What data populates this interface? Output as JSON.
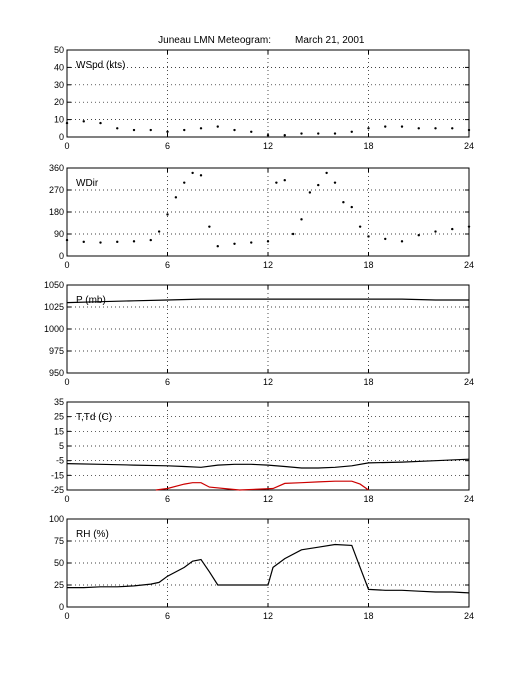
{
  "figure": {
    "title_station": "Juneau LMN Meteogram:",
    "title_date": "March 21, 2001"
  },
  "chart_data": [
    {
      "type": "scatter",
      "label": "WSpd (kts)",
      "xlim": [
        0,
        24
      ],
      "ylim": [
        0,
        50
      ],
      "xticks": [
        0,
        6,
        12,
        18,
        24
      ],
      "yticks": [
        0,
        10,
        20,
        30,
        40,
        50
      ],
      "grid": true,
      "series": [
        {
          "color": "#000000",
          "x": [
            0,
            1,
            2,
            3,
            4,
            5,
            6,
            7,
            8,
            9,
            10,
            11,
            12,
            13,
            14,
            15,
            16,
            17,
            18,
            19,
            20,
            21,
            22,
            23,
            24
          ],
          "values": [
            8,
            9,
            8,
            5,
            4,
            4,
            3,
            4,
            5,
            6,
            4,
            3,
            1,
            1,
            2,
            2,
            2,
            3,
            5,
            6,
            6,
            5,
            5,
            5,
            4
          ]
        }
      ]
    },
    {
      "type": "scatter",
      "label": "WDir",
      "xlim": [
        0,
        24
      ],
      "ylim": [
        0,
        360
      ],
      "xticks": [
        0,
        6,
        12,
        18,
        24
      ],
      "yticks": [
        0,
        90,
        180,
        270,
        360
      ],
      "grid": true,
      "series": [
        {
          "color": "#000000",
          "x": [
            0,
            1,
            2,
            3,
            4,
            5,
            5.5,
            6,
            6.5,
            7,
            7.5,
            8,
            8.5,
            9,
            10,
            11,
            12,
            12.5,
            13,
            13.5,
            14,
            14.5,
            15,
            15.5,
            16,
            16.5,
            17,
            17.5,
            18,
            19,
            20,
            21,
            22,
            23,
            24
          ],
          "values": [
            65,
            58,
            55,
            58,
            60,
            65,
            100,
            170,
            240,
            300,
            340,
            330,
            120,
            40,
            50,
            55,
            60,
            300,
            310,
            90,
            150,
            260,
            290,
            340,
            300,
            220,
            200,
            120,
            80,
            70,
            60,
            85,
            100,
            110,
            120
          ]
        }
      ]
    },
    {
      "type": "line",
      "label": "P (mb)",
      "xlim": [
        0,
        24
      ],
      "ylim": [
        950,
        1050
      ],
      "xticks": [
        0,
        6,
        12,
        18,
        24
      ],
      "yticks": [
        950,
        975,
        1000,
        1025,
        1050
      ],
      "grid": true,
      "series": [
        {
          "color": "#000000",
          "x": [
            0,
            2,
            4,
            6,
            8,
            10,
            12,
            14,
            16,
            18,
            20,
            22,
            24
          ],
          "values": [
            1030,
            1031,
            1032,
            1033,
            1034,
            1034,
            1034,
            1034,
            1034,
            1034,
            1034,
            1033,
            1033
          ]
        }
      ]
    },
    {
      "type": "line",
      "label": "T,Td (C)",
      "xlim": [
        0,
        24
      ],
      "ylim": [
        -25,
        35
      ],
      "xticks": [
        0,
        6,
        12,
        18,
        24
      ],
      "yticks": [
        -25,
        -15,
        -5,
        5,
        15,
        25,
        35
      ],
      "grid": true,
      "series": [
        {
          "color": "#000000",
          "x": [
            0,
            2,
            4,
            6,
            7,
            8,
            9,
            10,
            11,
            12,
            13,
            14,
            15,
            16,
            17,
            18,
            20,
            22,
            24
          ],
          "values": [
            -7,
            -7.5,
            -8,
            -8.5,
            -9,
            -9.5,
            -8,
            -7.5,
            -7.5,
            -8,
            -9,
            -10,
            -10,
            -9.5,
            -8.5,
            -6.5,
            -6,
            -5,
            -4
          ]
        },
        {
          "color": "#cc0000",
          "x": [
            5.3,
            6,
            7,
            7.5,
            8,
            8.5,
            10.3,
            12.3,
            13,
            14,
            15,
            16,
            17,
            17.5,
            18
          ],
          "values": [
            -25,
            -24,
            -21,
            -20,
            -20,
            -23,
            -25,
            -24,
            -20.5,
            -20,
            -19.5,
            -19,
            -19,
            -21,
            -25
          ]
        }
      ]
    },
    {
      "type": "line",
      "label": "RH (%)",
      "xlim": [
        0,
        24
      ],
      "ylim": [
        0,
        100
      ],
      "xticks": [
        0,
        6,
        12,
        18,
        24
      ],
      "yticks": [
        0,
        25,
        50,
        75,
        100
      ],
      "grid": true,
      "series": [
        {
          "color": "#000000",
          "x": [
            0,
            1,
            2,
            3,
            4,
            5,
            5.5,
            6,
            7,
            7.5,
            8,
            8.5,
            9,
            10,
            11,
            12,
            12.3,
            13,
            14,
            15,
            16,
            17,
            17.5,
            18,
            19,
            20,
            21,
            22,
            23,
            24
          ],
          "values": [
            22,
            22,
            23,
            23,
            24,
            26,
            28,
            35,
            45,
            52,
            54,
            40,
            25,
            25,
            25,
            25,
            45,
            55,
            65,
            68,
            71,
            70,
            45,
            20,
            19,
            19,
            18,
            17,
            17,
            16
          ]
        }
      ]
    }
  ]
}
